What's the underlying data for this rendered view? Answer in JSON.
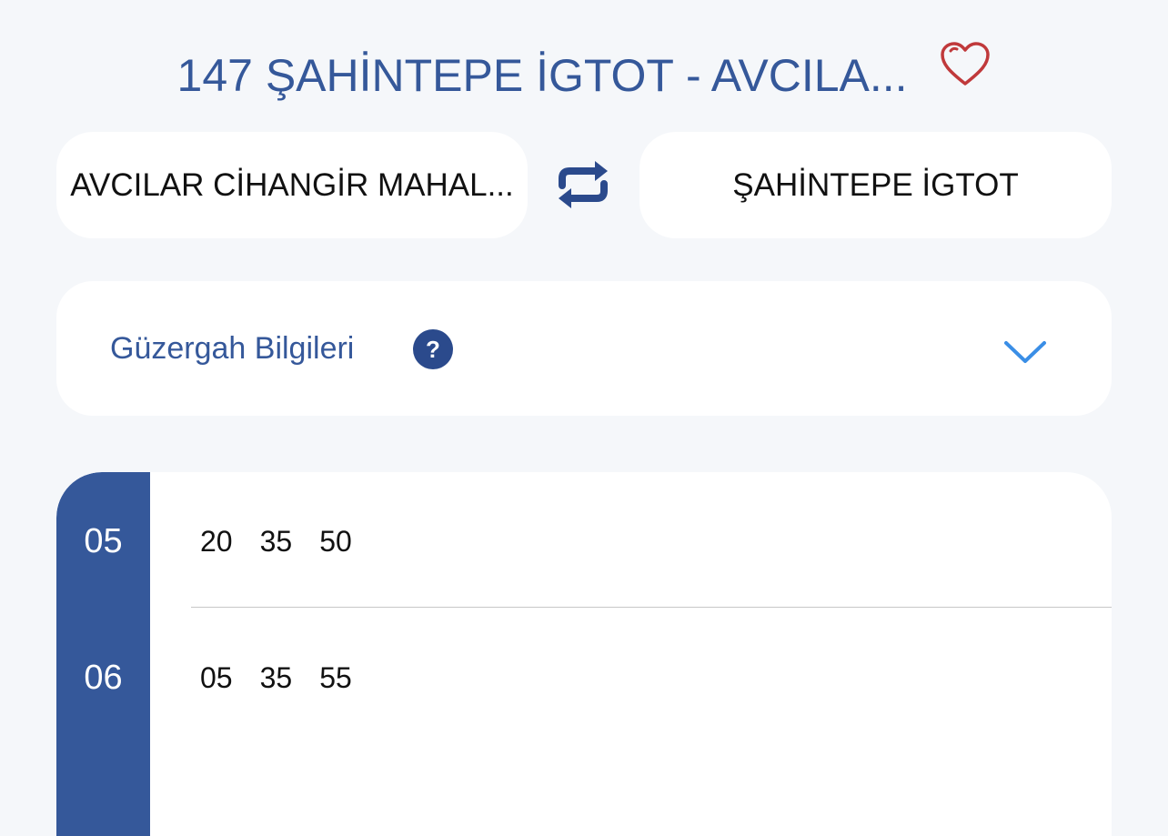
{
  "header": {
    "title": "147 ŞAHİNTEPE İGTOT - AVCILA...",
    "favorite_icon": "heart-outline-icon",
    "favorite_color": "#c0393b"
  },
  "direction": {
    "from": "AVCILAR CİHANGİR MAHAL...",
    "to": "ŞAHİNTEPE İGTOT",
    "swap_icon": "swap-arrows-icon"
  },
  "route_info": {
    "label": "Güzergah Bilgileri",
    "help": "?",
    "expand_icon": "chevron-down-icon"
  },
  "timetable": {
    "rows": [
      {
        "hour": "05",
        "minutes": [
          "20",
          "35",
          "50"
        ]
      },
      {
        "hour": "06",
        "minutes": [
          "05",
          "35",
          "55"
        ]
      }
    ]
  },
  "colors": {
    "primary": "#35589a",
    "background": "#f5f7fa",
    "accent": "#3a8ee6"
  }
}
